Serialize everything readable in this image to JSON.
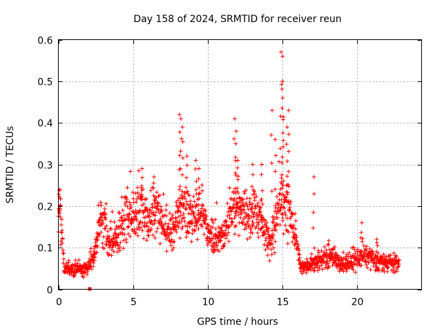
{
  "chart_data": {
    "type": "scatter",
    "title": "Day 158 of 2024, SRMTID for receiver reun",
    "xlabel": "GPS time / hours",
    "ylabel": "SRMTID / TECUs",
    "xlim": [
      0,
      24.3
    ],
    "ylim": [
      0,
      0.6
    ],
    "x_ticks": [
      0,
      5,
      10,
      15,
      20
    ],
    "x_tick_labels": [
      "0",
      "5",
      "10",
      "15",
      "20"
    ],
    "y_ticks": [
      0,
      0.1,
      0.2,
      0.3,
      0.4,
      0.5,
      0.6
    ],
    "y_tick_labels": [
      "0",
      "0.1",
      "0.2",
      "0.3",
      "0.4",
      "0.5",
      "0.6"
    ],
    "grid": true,
    "marker": "plus",
    "color": "#ff0000",
    "series": [
      {
        "name": "SRMTID",
        "profile": [
          {
            "x": 0.0,
            "y": 0.17
          },
          {
            "x": 0.1,
            "y": 0.2
          },
          {
            "x": 0.25,
            "y": 0.12
          },
          {
            "x": 0.4,
            "y": 0.05
          },
          {
            "x": 1.0,
            "y": 0.05
          },
          {
            "x": 2.0,
            "y": 0.05
          },
          {
            "x": 2.4,
            "y": 0.08
          },
          {
            "x": 2.8,
            "y": 0.16
          },
          {
            "x": 3.1,
            "y": 0.15
          },
          {
            "x": 3.4,
            "y": 0.11
          },
          {
            "x": 4.0,
            "y": 0.13
          },
          {
            "x": 4.5,
            "y": 0.19
          },
          {
            "x": 5.0,
            "y": 0.17
          },
          {
            "x": 5.5,
            "y": 0.2
          },
          {
            "x": 6.0,
            "y": 0.16
          },
          {
            "x": 6.6,
            "y": 0.2
          },
          {
            "x": 7.0,
            "y": 0.15
          },
          {
            "x": 7.7,
            "y": 0.14
          },
          {
            "x": 8.2,
            "y": 0.2
          },
          {
            "x": 8.6,
            "y": 0.18
          },
          {
            "x": 9.2,
            "y": 0.17
          },
          {
            "x": 9.6,
            "y": 0.19
          },
          {
            "x": 10.0,
            "y": 0.13
          },
          {
            "x": 10.6,
            "y": 0.13
          },
          {
            "x": 11.0,
            "y": 0.12
          },
          {
            "x": 11.6,
            "y": 0.19
          },
          {
            "x": 12.2,
            "y": 0.2
          },
          {
            "x": 12.8,
            "y": 0.17
          },
          {
            "x": 13.2,
            "y": 0.18
          },
          {
            "x": 13.8,
            "y": 0.14
          },
          {
            "x": 14.3,
            "y": 0.11
          },
          {
            "x": 14.7,
            "y": 0.19
          },
          {
            "x": 15.1,
            "y": 0.2
          },
          {
            "x": 15.5,
            "y": 0.17
          },
          {
            "x": 15.9,
            "y": 0.12
          },
          {
            "x": 16.2,
            "y": 0.05
          },
          {
            "x": 17.0,
            "y": 0.06
          },
          {
            "x": 17.5,
            "y": 0.07
          },
          {
            "x": 18.2,
            "y": 0.08
          },
          {
            "x": 19.0,
            "y": 0.06
          },
          {
            "x": 20.0,
            "y": 0.07
          },
          {
            "x": 20.5,
            "y": 0.08
          },
          {
            "x": 21.2,
            "y": 0.07
          },
          {
            "x": 22.0,
            "y": 0.06
          },
          {
            "x": 22.8,
            "y": 0.06
          }
        ],
        "peaks": [
          {
            "x": 0.1,
            "y": 0.24
          },
          {
            "x": 5.6,
            "y": 0.29
          },
          {
            "x": 6.4,
            "y": 0.27
          },
          {
            "x": 8.1,
            "y": 0.42
          },
          {
            "x": 8.2,
            "y": 0.41
          },
          {
            "x": 8.3,
            "y": 0.39
          },
          {
            "x": 8.6,
            "y": 0.32
          },
          {
            "x": 9.2,
            "y": 0.31
          },
          {
            "x": 9.4,
            "y": 0.29
          },
          {
            "x": 11.8,
            "y": 0.41
          },
          {
            "x": 11.9,
            "y": 0.38
          },
          {
            "x": 12.0,
            "y": 0.31
          },
          {
            "x": 13.0,
            "y": 0.3
          },
          {
            "x": 13.6,
            "y": 0.3
          },
          {
            "x": 14.3,
            "y": 0.43
          },
          {
            "x": 14.5,
            "y": 0.36
          },
          {
            "x": 14.9,
            "y": 0.57
          },
          {
            "x": 15.0,
            "y": 0.56
          },
          {
            "x": 15.0,
            "y": 0.5
          },
          {
            "x": 15.0,
            "y": 0.46
          },
          {
            "x": 15.4,
            "y": 0.43
          },
          {
            "x": 15.3,
            "y": 0.39
          },
          {
            "x": 17.1,
            "y": 0.27
          },
          {
            "x": 20.3,
            "y": 0.16
          },
          {
            "x": 21.3,
            "y": 0.12
          }
        ],
        "zero_point": {
          "x": 2.1,
          "y": 0.0
        }
      }
    ]
  }
}
